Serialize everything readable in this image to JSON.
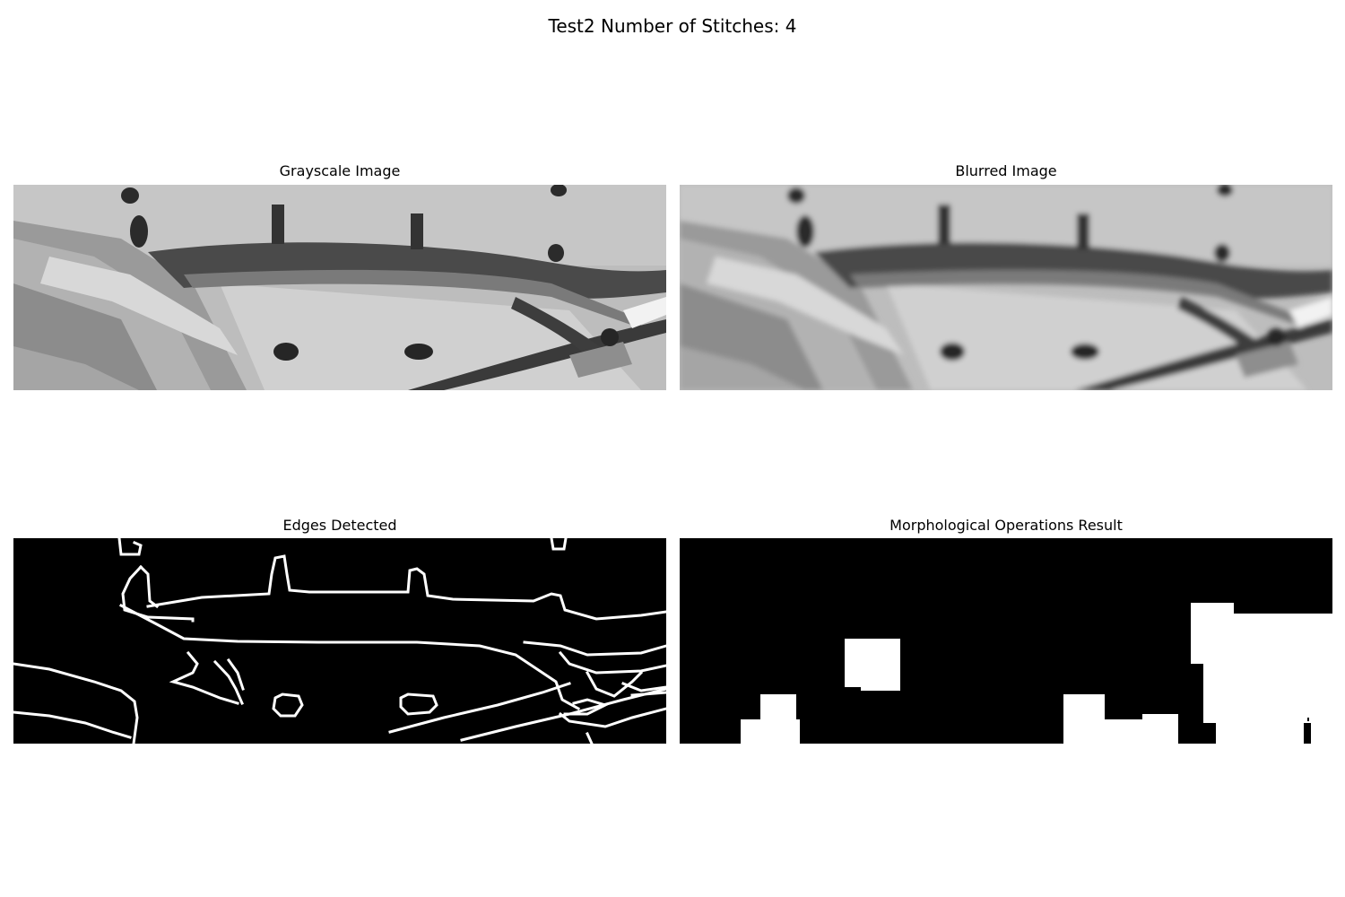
{
  "figure": {
    "suptitle": "Test2 Number of Stitches: 4"
  },
  "panels": [
    {
      "title": "Grayscale Image"
    },
    {
      "title": "Blurred Image"
    },
    {
      "title": "Edges Detected"
    },
    {
      "title": "Morphological Operations Result"
    }
  ]
}
